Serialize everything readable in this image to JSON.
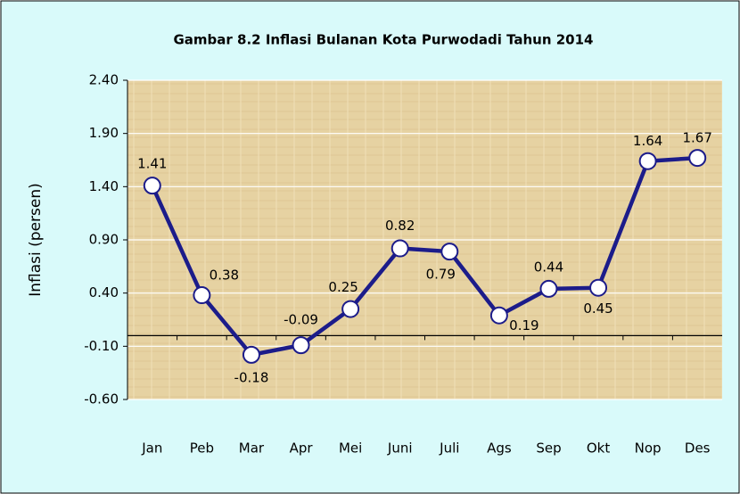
{
  "chart_data": {
    "type": "line",
    "title": "Gambar 8.2 Inflasi Bulanan Kota Purwodadi Tahun 2014",
    "y_label": "Inflasi (persen)",
    "categories": [
      "Jan",
      "Peb",
      "Mar",
      "Apr",
      "Mei",
      "Juni",
      "Juli",
      "Ags",
      "Sep",
      "Okt",
      "Nop",
      "Des"
    ],
    "values": [
      1.41,
      0.38,
      -0.18,
      -0.09,
      0.25,
      0.82,
      0.79,
      0.19,
      0.44,
      0.45,
      1.64,
      1.67
    ],
    "color": "#1c1c8a",
    "ylim": [
      -0.6,
      2.4
    ],
    "yticks": [
      {
        "value": -0.6,
        "label": "-0.60"
      },
      {
        "value": -0.1,
        "label": "-0.10"
      },
      {
        "value": 0.4,
        "label": "0.40"
      },
      {
        "value": 0.9,
        "label": "0.90"
      },
      {
        "value": 1.4,
        "label": "1.40"
      },
      {
        "value": 1.9,
        "label": "1.90"
      },
      {
        "value": 2.4,
        "label": "2.40"
      }
    ],
    "grid": true
  }
}
